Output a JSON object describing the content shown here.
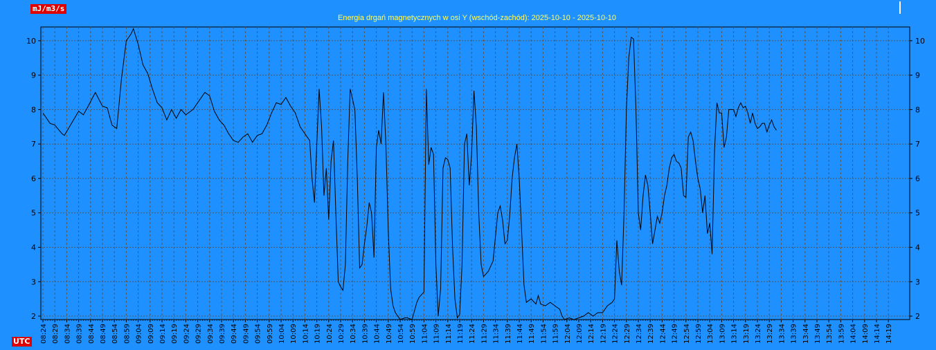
{
  "unit_label": "mJ/m3/s",
  "timezone_label": "UTC",
  "colors": {
    "background": "#1e90ff",
    "line": "#000000",
    "grid": "#555555",
    "title": "#ffff66",
    "badge": "#e00000"
  },
  "chart_data": {
    "type": "line",
    "title": "Energia drgań magnetycznych w osi Y (wschód-zachód): 2025-10-10 - 2025-10-10",
    "xlabel": "",
    "ylabel": "mJ/m3/s",
    "ylim": [
      1.9,
      10.4
    ],
    "yticks": [
      2,
      3,
      4,
      5,
      6,
      7,
      8,
      9,
      10
    ],
    "grid": true,
    "legend": "none",
    "xticks": [
      "08:24",
      "08:29",
      "08:34",
      "08:39",
      "08:44",
      "08:49",
      "08:54",
      "08:59",
      "09:04",
      "09:09",
      "09:14",
      "09:19",
      "09:24",
      "09:29",
      "09:34",
      "09:39",
      "09:44",
      "09:49",
      "09:54",
      "09:59",
      "10:04",
      "10:09",
      "10:14",
      "10:19",
      "10:24",
      "10:29",
      "10:34",
      "10:39",
      "10:44",
      "10:49",
      "10:54",
      "10:59",
      "11:04",
      "11:09",
      "11:14",
      "11:19",
      "11:24",
      "11:29",
      "11:34",
      "11:39",
      "11:44",
      "11:49",
      "11:54",
      "11:59",
      "12:04",
      "12:09",
      "12:14",
      "12:19",
      "12:24",
      "12:29",
      "12:34",
      "12:39",
      "12:44",
      "12:49",
      "12:54",
      "12:59",
      "13:04",
      "13:09",
      "13:14",
      "13:19",
      "13:24",
      "13:29",
      "13:34",
      "13:39",
      "13:44",
      "13:49",
      "13:54",
      "13:59",
      "14:04",
      "14:09",
      "14:14",
      "14:19"
    ],
    "series": [
      {
        "values": [
          [
            0,
            7.9
          ],
          [
            3,
            7.6
          ],
          [
            5,
            7.55
          ],
          [
            8,
            7.3
          ],
          [
            9,
            7.25
          ],
          [
            12,
            7.6
          ],
          [
            15,
            7.95
          ],
          [
            17,
            7.85
          ],
          [
            19,
            8.1
          ],
          [
            22,
            8.5
          ],
          [
            25,
            8.1
          ],
          [
            27,
            8.05
          ],
          [
            29,
            7.55
          ],
          [
            31,
            7.45
          ],
          [
            33,
            8.9
          ],
          [
            35,
            10.0
          ],
          [
            37,
            10.2
          ],
          [
            38,
            10.35
          ],
          [
            40,
            9.9
          ],
          [
            42,
            9.3
          ],
          [
            44,
            9.05
          ],
          [
            46,
            8.6
          ],
          [
            48,
            8.2
          ],
          [
            50,
            8.05
          ],
          [
            52,
            7.7
          ],
          [
            54,
            8.0
          ],
          [
            56,
            7.75
          ],
          [
            58,
            8.0
          ],
          [
            60,
            7.85
          ],
          [
            63,
            8.0
          ],
          [
            66,
            8.3
          ],
          [
            68,
            8.5
          ],
          [
            70,
            8.4
          ],
          [
            72,
            7.95
          ],
          [
            74,
            7.7
          ],
          [
            76,
            7.55
          ],
          [
            78,
            7.3
          ],
          [
            80,
            7.1
          ],
          [
            82,
            7.05
          ],
          [
            84,
            7.2
          ],
          [
            86,
            7.3
          ],
          [
            88,
            7.05
          ],
          [
            90,
            7.25
          ],
          [
            92,
            7.3
          ],
          [
            94,
            7.55
          ],
          [
            96,
            7.9
          ],
          [
            98,
            8.2
          ],
          [
            100,
            8.15
          ],
          [
            102,
            8.35
          ],
          [
            104,
            8.1
          ],
          [
            106,
            7.9
          ],
          [
            108,
            7.5
          ],
          [
            110,
            7.3
          ],
          [
            112,
            7.1
          ],
          [
            113,
            6.0
          ],
          [
            114,
            5.3
          ],
          [
            115,
            7.0
          ],
          [
            116,
            8.6
          ],
          [
            117,
            7.5
          ],
          [
            118,
            5.5
          ],
          [
            119,
            6.3
          ],
          [
            120,
            4.8
          ],
          [
            121,
            6.5
          ],
          [
            122,
            7.1
          ],
          [
            123,
            5.0
          ],
          [
            124,
            3.0
          ],
          [
            125,
            2.85
          ],
          [
            126,
            2.75
          ],
          [
            127,
            3.5
          ],
          [
            128,
            6.5
          ],
          [
            129,
            8.6
          ],
          [
            130,
            8.3
          ],
          [
            131,
            8.0
          ],
          [
            132,
            6.0
          ],
          [
            133,
            3.4
          ],
          [
            134,
            3.5
          ],
          [
            135,
            4.1
          ],
          [
            136,
            4.6
          ],
          [
            137,
            5.3
          ],
          [
            138,
            5.0
          ],
          [
            139,
            3.7
          ],
          [
            140,
            6.9
          ],
          [
            141,
            7.4
          ],
          [
            142,
            7.0
          ],
          [
            143,
            8.5
          ],
          [
            144,
            7.0
          ],
          [
            145,
            4.5
          ],
          [
            146,
            2.8
          ],
          [
            147,
            2.3
          ],
          [
            148,
            2.1
          ],
          [
            150,
            1.9
          ],
          [
            152,
            1.95
          ],
          [
            153,
            1.95
          ],
          [
            155,
            1.9
          ],
          [
            157,
            2.4
          ],
          [
            158,
            2.55
          ],
          [
            160,
            2.7
          ],
          [
            161,
            8.6
          ],
          [
            162,
            6.4
          ],
          [
            163,
            6.9
          ],
          [
            164,
            6.7
          ],
          [
            165,
            3.5
          ],
          [
            166,
            2.0
          ],
          [
            167,
            2.8
          ],
          [
            168,
            6.3
          ],
          [
            169,
            6.6
          ],
          [
            170,
            6.55
          ],
          [
            171,
            6.3
          ],
          [
            172,
            4.0
          ],
          [
            173,
            2.5
          ],
          [
            174,
            1.95
          ],
          [
            175,
            2.05
          ],
          [
            176,
            3.5
          ],
          [
            177,
            7.0
          ],
          [
            178,
            7.3
          ],
          [
            179,
            5.8
          ],
          [
            180,
            6.7
          ],
          [
            181,
            8.55
          ],
          [
            182,
            7.5
          ],
          [
            183,
            5.0
          ],
          [
            184,
            3.5
          ],
          [
            185,
            3.15
          ],
          [
            187,
            3.3
          ],
          [
            189,
            3.6
          ],
          [
            190,
            4.3
          ],
          [
            191,
            5.0
          ],
          [
            192,
            5.2
          ],
          [
            193,
            4.8
          ],
          [
            194,
            4.1
          ],
          [
            195,
            4.2
          ],
          [
            196,
            4.9
          ],
          [
            197,
            6.0
          ],
          [
            198,
            6.6
          ],
          [
            199,
            7.0
          ],
          [
            200,
            6.0
          ],
          [
            201,
            4.5
          ],
          [
            202,
            2.9
          ],
          [
            203,
            2.4
          ],
          [
            205,
            2.5
          ],
          [
            207,
            2.35
          ],
          [
            208,
            2.6
          ],
          [
            209,
            2.35
          ],
          [
            211,
            2.3
          ],
          [
            213,
            2.4
          ],
          [
            215,
            2.3
          ],
          [
            216,
            2.25
          ],
          [
            217,
            2.2
          ],
          [
            218,
            2.0
          ],
          [
            219,
            1.9
          ],
          [
            221,
            1.95
          ],
          [
            223,
            1.9
          ],
          [
            225,
            1.95
          ],
          [
            227,
            2.0
          ],
          [
            229,
            2.1
          ],
          [
            231,
            2.0
          ],
          [
            233,
            2.1
          ],
          [
            235,
            2.1
          ],
          [
            237,
            2.3
          ],
          [
            239,
            2.4
          ],
          [
            240,
            2.5
          ],
          [
            241,
            4.2
          ],
          [
            242,
            3.3
          ],
          [
            243,
            2.9
          ],
          [
            244,
            5.0
          ],
          [
            245,
            8.0
          ],
          [
            246,
            9.5
          ],
          [
            247,
            10.1
          ],
          [
            248,
            10.05
          ],
          [
            249,
            8.0
          ],
          [
            250,
            5.0
          ],
          [
            251,
            4.5
          ],
          [
            252,
            5.5
          ],
          [
            253,
            6.1
          ],
          [
            254,
            5.8
          ],
          [
            255,
            5.0
          ],
          [
            256,
            4.1
          ],
          [
            257,
            4.5
          ],
          [
            258,
            4.9
          ],
          [
            259,
            4.7
          ],
          [
            260,
            5.0
          ],
          [
            261,
            5.5
          ],
          [
            262,
            5.8
          ],
          [
            263,
            6.3
          ],
          [
            264,
            6.6
          ],
          [
            265,
            6.7
          ],
          [
            266,
            6.5
          ],
          [
            267,
            6.45
          ],
          [
            268,
            6.3
          ],
          [
            269,
            5.5
          ],
          [
            270,
            5.45
          ],
          [
            271,
            7.2
          ],
          [
            272,
            7.35
          ],
          [
            273,
            7.1
          ],
          [
            274,
            6.5
          ],
          [
            275,
            6.0
          ],
          [
            276,
            5.7
          ],
          [
            277,
            5.0
          ],
          [
            278,
            5.5
          ],
          [
            279,
            4.4
          ],
          [
            280,
            4.7
          ],
          [
            281,
            3.8
          ],
          [
            282,
            6.8
          ],
          [
            283,
            8.2
          ],
          [
            284,
            7.9
          ],
          [
            285,
            7.9
          ],
          [
            286,
            6.9
          ],
          [
            287,
            7.2
          ],
          [
            288,
            8.0
          ],
          [
            290,
            8.0
          ],
          [
            291,
            7.8
          ],
          [
            292,
            8.05
          ],
          [
            293,
            8.2
          ],
          [
            294,
            8.05
          ],
          [
            295,
            8.1
          ],
          [
            296,
            7.9
          ],
          [
            297,
            7.6
          ],
          [
            298,
            7.9
          ],
          [
            299,
            7.6
          ],
          [
            300,
            7.45
          ],
          [
            301,
            7.5
          ],
          [
            302,
            7.6
          ],
          [
            303,
            7.6
          ],
          [
            304,
            7.35
          ],
          [
            305,
            7.55
          ],
          [
            306,
            7.7
          ],
          [
            307,
            7.5
          ],
          [
            308,
            7.4
          ]
        ]
      }
    ]
  }
}
